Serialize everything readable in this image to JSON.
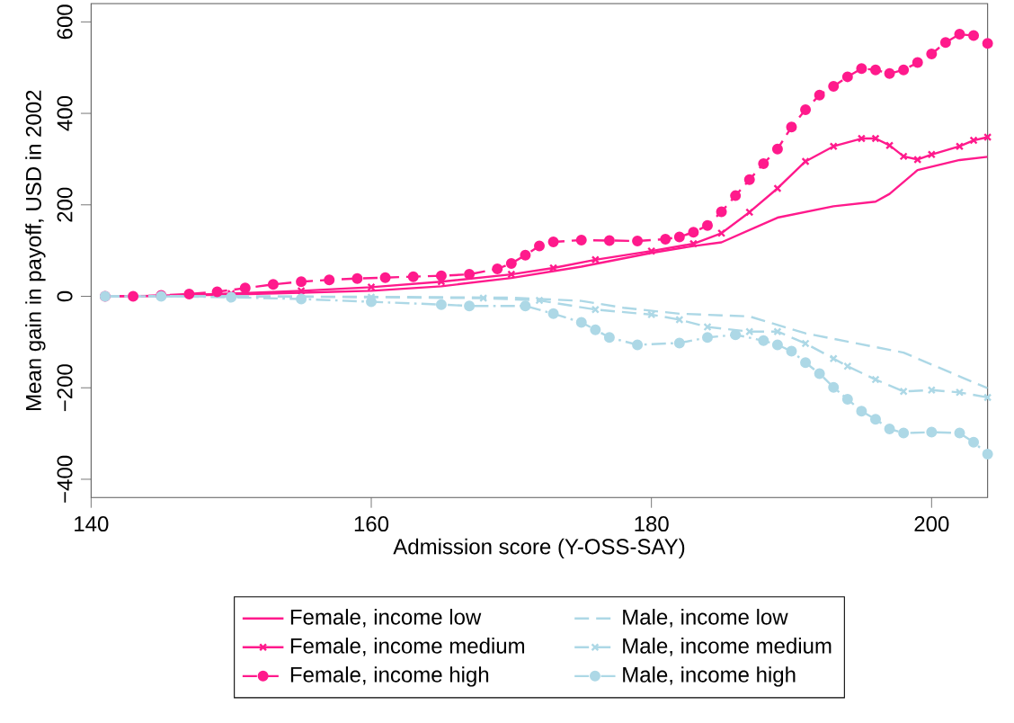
{
  "chart_data": {
    "type": "line",
    "xlabel": "Admission score (Y-OSS-SAY)",
    "ylabel": "Mean gain in payoff, USD in 2002",
    "xlim": [
      140,
      204
    ],
    "xticks": [
      140,
      160,
      180,
      200
    ],
    "ylim": [
      -440,
      640
    ],
    "yticks": [
      {
        "value": -400,
        "label": "−400"
      },
      {
        "value": -200,
        "label": "−200"
      },
      0,
      200,
      400,
      600
    ],
    "grid": false,
    "legend": "bottom",
    "series": [
      {
        "name": "Female, income low",
        "color": "#ff1a8c",
        "line_style": "solid",
        "marker": "none",
        "x": [
          141,
          145,
          150,
          155,
          160,
          165,
          170,
          175,
          180,
          183,
          185,
          189,
          193,
          196,
          197,
          199,
          202,
          204
        ],
        "values": [
          0,
          1,
          4,
          8,
          12,
          22,
          40,
          65,
          95,
          110,
          118,
          172,
          197,
          207,
          224,
          276,
          298,
          305
        ]
      },
      {
        "name": "Female, income medium",
        "color": "#ff1a8c",
        "line_style": "solid",
        "marker": "cross",
        "x": [
          141,
          145,
          150,
          155,
          160,
          165,
          170,
          173,
          176,
          180,
          183,
          185,
          187,
          189,
          191,
          193,
          195,
          196,
          197,
          198,
          199,
          200,
          202,
          203,
          204
        ],
        "values": [
          0,
          1,
          6,
          12,
          20,
          32,
          48,
          62,
          80,
          99,
          115,
          138,
          184,
          236,
          295,
          328,
          345,
          345,
          330,
          306,
          299,
          310,
          328,
          341,
          348
        ]
      },
      {
        "name": "Female, income high",
        "color": "#ff1a8c",
        "line_style": "dashed",
        "marker": "circle",
        "x": [
          141,
          143,
          145,
          147,
          149,
          151,
          153,
          155,
          157,
          159,
          161,
          163,
          165,
          167,
          169,
          170,
          171,
          172,
          173,
          175,
          177,
          179,
          181,
          182,
          183,
          184,
          185,
          186,
          187,
          188,
          189,
          190,
          191,
          192,
          193,
          194,
          195,
          196,
          197,
          198,
          199,
          200,
          201,
          202,
          203,
          204
        ],
        "values": [
          0,
          0,
          2,
          5,
          10,
          18,
          26,
          32,
          36,
          39,
          41,
          43,
          45,
          48,
          60,
          72,
          90,
          110,
          119,
          123,
          122,
          121,
          125,
          130,
          140,
          155,
          185,
          220,
          255,
          290,
          322,
          370,
          408,
          440,
          459,
          480,
          498,
          495,
          487,
          495,
          511,
          530,
          555,
          573,
          570,
          553
        ]
      },
      {
        "name": "Male, income low",
        "color": "#add8e6",
        "line_style": "dashed",
        "marker": "none",
        "x": [
          141,
          150,
          160,
          170,
          175,
          178,
          182,
          187,
          191,
          194,
          198,
          200,
          204
        ],
        "values": [
          0,
          0,
          -1,
          -3,
          -10,
          -25,
          -38,
          -44,
          -81,
          -99,
          -123,
          -149,
          -201
        ]
      },
      {
        "name": "Male, income medium",
        "color": "#add8e6",
        "line_style": "dashed",
        "marker": "cross",
        "x": [
          141,
          150,
          160,
          168,
          172,
          176,
          180,
          182,
          184,
          187,
          189,
          191,
          193,
          194,
          196,
          198,
          200,
          202,
          204
        ],
        "values": [
          0,
          0,
          -2,
          -4,
          -9,
          -29,
          -40,
          -51,
          -67,
          -77,
          -77,
          -103,
          -136,
          -153,
          -182,
          -208,
          -205,
          -210,
          -221
        ]
      },
      {
        "name": "Male, income high",
        "color": "#add8e6",
        "line_style": "dashdot",
        "marker": "circle",
        "x": [
          141,
          145,
          150,
          155,
          160,
          165,
          167,
          171,
          173,
          175,
          176,
          177,
          179,
          182,
          184,
          186,
          188,
          189,
          190,
          191,
          192,
          193,
          194,
          195,
          196,
          197,
          198,
          200,
          202,
          203,
          204
        ],
        "values": [
          0,
          0,
          -2,
          -6,
          -12,
          -18,
          -21,
          -21,
          -38,
          -57,
          -73,
          -90,
          -106,
          -102,
          -90,
          -84,
          -97,
          -106,
          -120,
          -145,
          -169,
          -199,
          -225,
          -251,
          -269,
          -290,
          -299,
          -297,
          -299,
          -319,
          -345
        ]
      }
    ]
  }
}
